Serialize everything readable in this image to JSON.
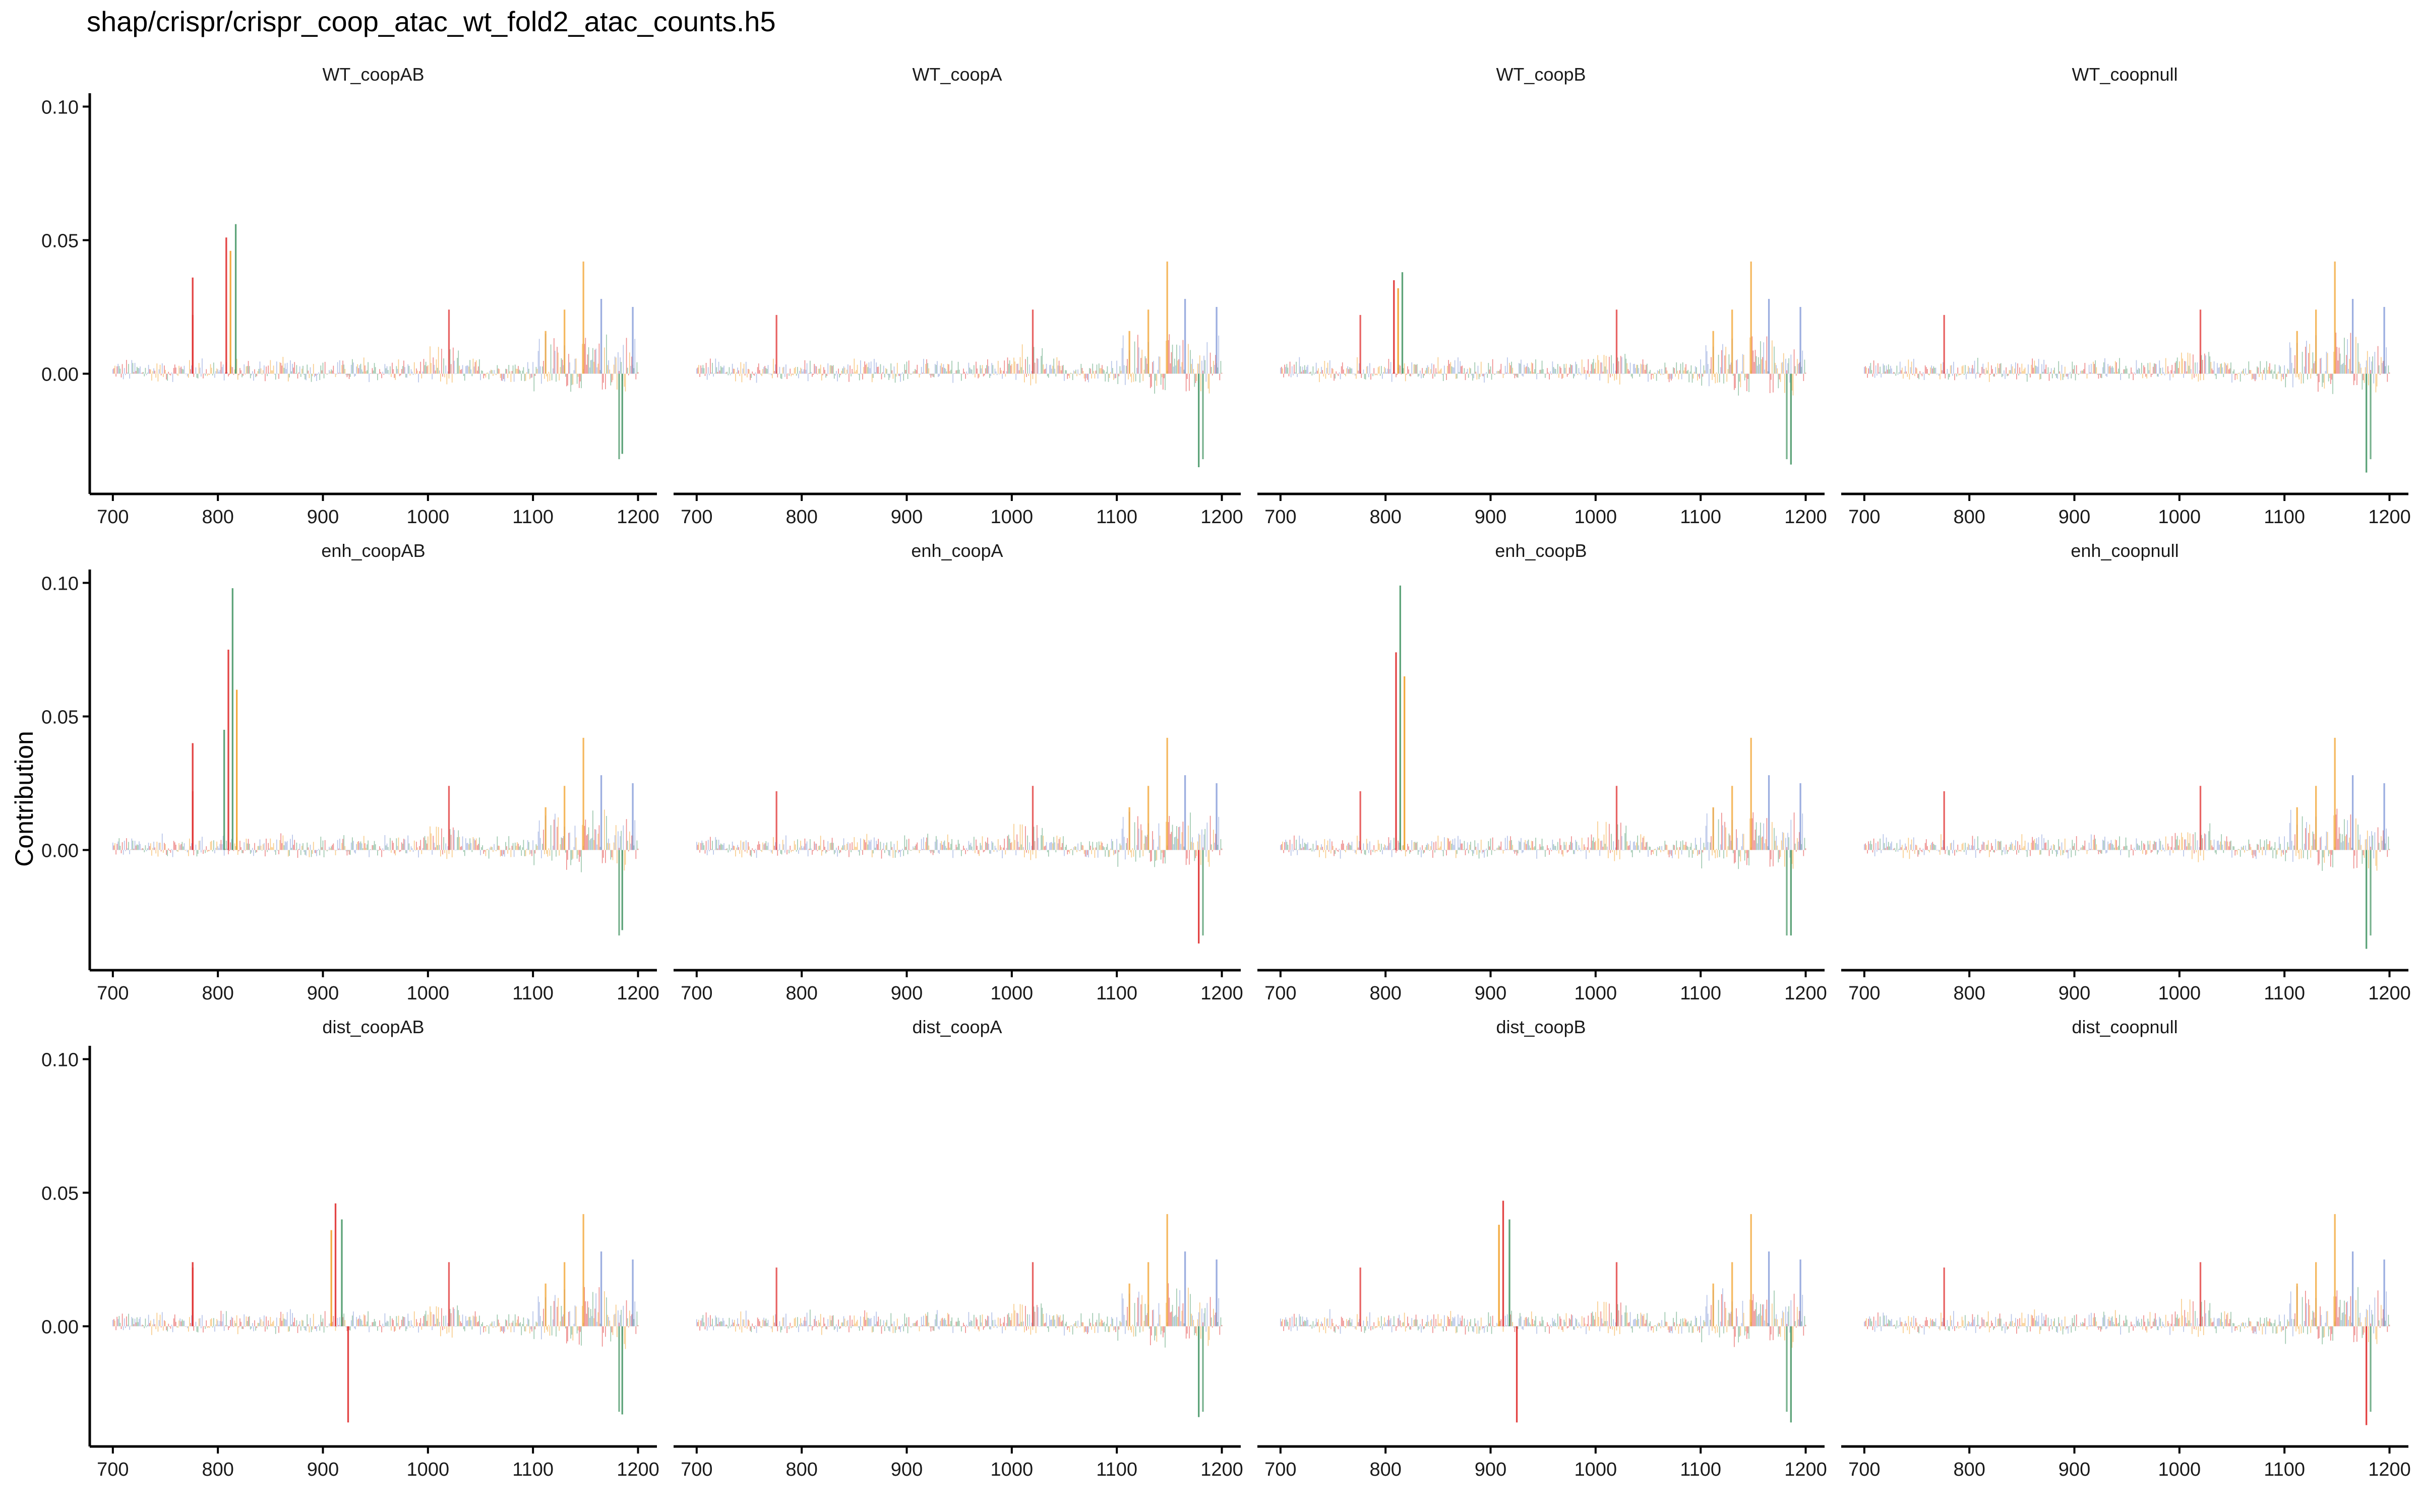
{
  "title": "shap/crispr/crispr_coop_atac_wt_fold2_atac_counts.h5",
  "ylabel": "Contribution",
  "colors": {
    "A": "#4c9a6b",
    "C": "#7b93d6",
    "G": "#f2a22c",
    "T": "#e03030",
    "axis": "#000000"
  },
  "chart_data": {
    "type": "bar",
    "layout": "facet_grid",
    "rows": [
      "WT",
      "enh",
      "dist"
    ],
    "cols": [
      "coopAB",
      "coopA",
      "coopB",
      "coopnull"
    ],
    "xlim": [
      678,
      1218
    ],
    "xticks": [
      700,
      800,
      900,
      1000,
      1100,
      1200
    ],
    "xtick_labels": [
      "700",
      "800",
      "900",
      "1000",
      "1100",
      "1200"
    ],
    "ylim": [
      -0.045,
      0.105
    ],
    "yticks": [
      0.0,
      0.05,
      0.1
    ],
    "ytick_labels": [
      "0.00",
      "0.05",
      "0.10"
    ],
    "bases": [
      "A",
      "C",
      "G",
      "T"
    ],
    "shared_features": [
      {
        "x": 776,
        "y": 0.022,
        "base": "T"
      },
      {
        "x": 1020,
        "y": 0.024,
        "base": "T"
      },
      {
        "x": 1112,
        "y": 0.016,
        "base": "G"
      },
      {
        "x": 1130,
        "y": 0.024,
        "base": "G"
      },
      {
        "x": 1148,
        "y": 0.042,
        "base": "G"
      },
      {
        "x": 1165,
        "y": 0.028,
        "base": "C"
      },
      {
        "x": 1182,
        "y": -0.032,
        "base": "A"
      },
      {
        "x": 1195,
        "y": 0.025,
        "base": "C"
      }
    ],
    "panels": [
      {
        "label": "WT_coopAB",
        "peaks": [
          {
            "x": 776,
            "y": 0.036,
            "base": "T"
          },
          {
            "x": 808,
            "y": 0.051,
            "base": "T"
          },
          {
            "x": 812,
            "y": 0.046,
            "base": "G"
          },
          {
            "x": 817,
            "y": 0.056,
            "base": "A"
          },
          {
            "x": 1185,
            "y": -0.03,
            "base": "A"
          }
        ]
      },
      {
        "label": "WT_coopA",
        "peaks": [
          {
            "x": 1178,
            "y": -0.035,
            "base": "A"
          }
        ]
      },
      {
        "label": "WT_coopB",
        "peaks": [
          {
            "x": 808,
            "y": 0.035,
            "base": "T"
          },
          {
            "x": 812,
            "y": 0.032,
            "base": "G"
          },
          {
            "x": 816,
            "y": 0.038,
            "base": "A"
          },
          {
            "x": 1186,
            "y": -0.034,
            "base": "A"
          }
        ]
      },
      {
        "label": "WT_coopnull",
        "peaks": [
          {
            "x": 1178,
            "y": -0.037,
            "base": "A"
          }
        ]
      },
      {
        "label": "enh_coopAB",
        "peaks": [
          {
            "x": 776,
            "y": 0.04,
            "base": "T"
          },
          {
            "x": 806,
            "y": 0.045,
            "base": "A"
          },
          {
            "x": 810,
            "y": 0.075,
            "base": "T"
          },
          {
            "x": 814,
            "y": 0.098,
            "base": "A"
          },
          {
            "x": 818,
            "y": 0.06,
            "base": "G"
          },
          {
            "x": 1185,
            "y": -0.03,
            "base": "A"
          }
        ]
      },
      {
        "label": "enh_coopA",
        "peaks": [
          {
            "x": 1178,
            "y": -0.035,
            "base": "T"
          }
        ]
      },
      {
        "label": "enh_coopB",
        "peaks": [
          {
            "x": 810,
            "y": 0.074,
            "base": "T"
          },
          {
            "x": 814,
            "y": 0.099,
            "base": "A"
          },
          {
            "x": 818,
            "y": 0.065,
            "base": "G"
          },
          {
            "x": 1186,
            "y": -0.032,
            "base": "A"
          }
        ]
      },
      {
        "label": "enh_coopnull",
        "peaks": [
          {
            "x": 1178,
            "y": -0.037,
            "base": "A"
          }
        ]
      },
      {
        "label": "dist_coopAB",
        "peaks": [
          {
            "x": 776,
            "y": 0.024,
            "base": "T"
          },
          {
            "x": 908,
            "y": 0.036,
            "base": "G"
          },
          {
            "x": 912,
            "y": 0.046,
            "base": "T"
          },
          {
            "x": 918,
            "y": 0.04,
            "base": "A"
          },
          {
            "x": 924,
            "y": -0.036,
            "base": "T"
          },
          {
            "x": 1185,
            "y": -0.033,
            "base": "A"
          }
        ]
      },
      {
        "label": "dist_coopA",
        "peaks": [
          {
            "x": 1178,
            "y": -0.034,
            "base": "A"
          }
        ]
      },
      {
        "label": "dist_coopB",
        "peaks": [
          {
            "x": 908,
            "y": 0.038,
            "base": "G"
          },
          {
            "x": 912,
            "y": 0.047,
            "base": "T"
          },
          {
            "x": 918,
            "y": 0.04,
            "base": "A"
          },
          {
            "x": 925,
            "y": -0.036,
            "base": "T"
          },
          {
            "x": 1186,
            "y": -0.036,
            "base": "A"
          }
        ]
      },
      {
        "label": "dist_coopnull",
        "peaks": [
          {
            "x": 1178,
            "y": -0.037,
            "base": "T"
          }
        ]
      }
    ]
  }
}
